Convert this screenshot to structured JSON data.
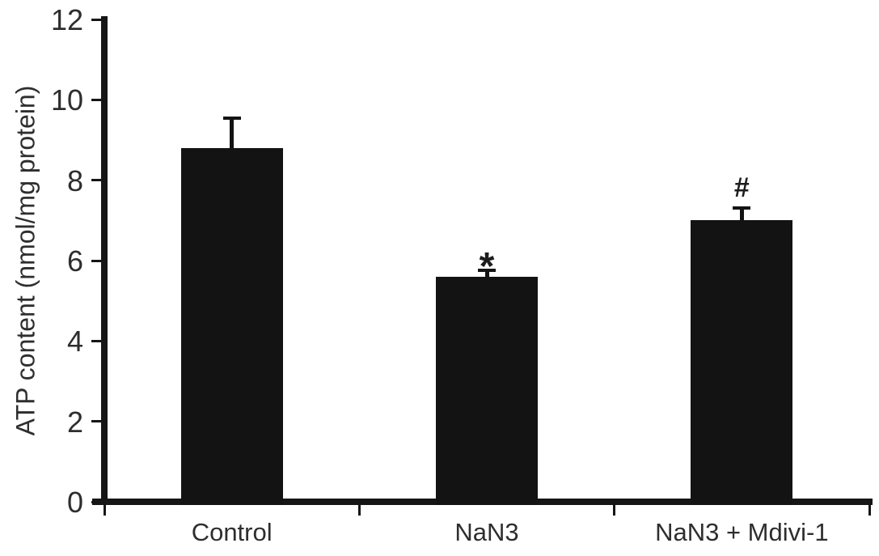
{
  "chart_data": {
    "type": "bar",
    "title": "",
    "xlabel": "",
    "ylabel": "ATP content (nmol/mg protein)",
    "categories": [
      "Control",
      "NaN3",
      "NaN3 + Mdivi-1"
    ],
    "values": [
      8.8,
      5.6,
      7.0
    ],
    "errors": [
      0.75,
      0.15,
      0.3
    ],
    "annotations": [
      "",
      "*",
      "#"
    ],
    "ylim": [
      0,
      12
    ],
    "yticks": [
      0,
      2,
      4,
      6,
      8,
      10,
      12
    ],
    "grid": false,
    "legend": null,
    "bar_color": "#131313",
    "axis_color": "#161616",
    "text_color": "#2e2e2e",
    "background_color": "#ffffff"
  }
}
